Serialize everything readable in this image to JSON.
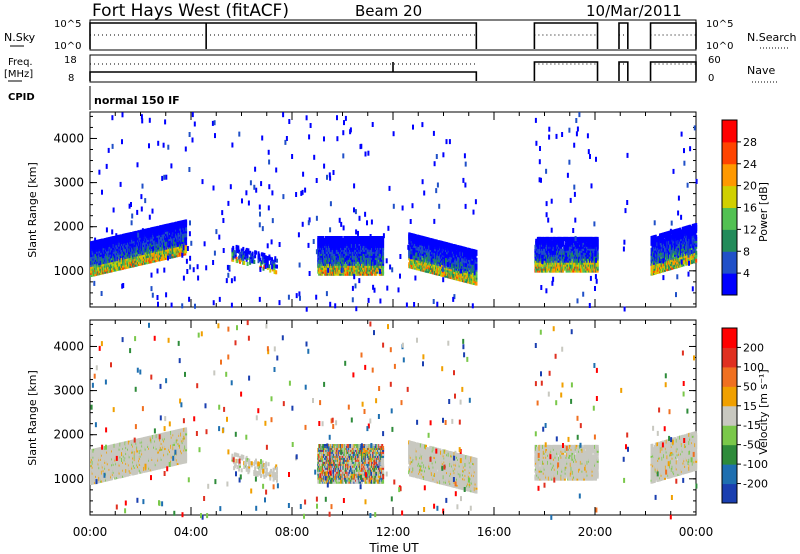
{
  "header": {
    "station": "Fort Hays West (fitACF)",
    "beam": "Beam 20",
    "date": "10/Mar/2011",
    "cpid_label": "CPID",
    "cpid_value": "normal 150 IF"
  },
  "noise_panel": {
    "left_label": "N.Sky",
    "right_label": "N.Search",
    "left_ticks": [
      "10^5",
      "10^0"
    ],
    "right_ticks": [
      "10^5",
      "10^0"
    ]
  },
  "freq_panel": {
    "left_label_1": "Freq.",
    "left_label_2": "[MHz]",
    "right_label": "Nave",
    "left_ticks": [
      "18",
      "8"
    ],
    "right_ticks": [
      "60",
      "0"
    ]
  },
  "chart_data": [
    {
      "type": "heatmap",
      "name": "power",
      "ylabel": "Slant Range [km]",
      "y_ticks": [
        1000,
        2000,
        3000,
        4000
      ],
      "ylim": [
        180,
        4600
      ],
      "colorbar_label": "Power [dB]",
      "colorbar_ticks": [
        "28",
        "24",
        "20",
        "16",
        "12",
        "8",
        "4"
      ],
      "colors": [
        "#0000ff",
        "#2050c8",
        "#228b5a",
        "#52c152",
        "#d0d000",
        "#ff9900",
        "#ff4400",
        "#ff0000"
      ]
    },
    {
      "type": "heatmap",
      "name": "velocity",
      "ylabel": "Slant Range [km]",
      "y_ticks": [
        1000,
        2000,
        3000,
        4000
      ],
      "ylim": [
        180,
        4600
      ],
      "colorbar_label": "Velocity [m s⁻¹]",
      "colorbar_ticks": [
        "200",
        "100",
        "50",
        "15",
        "-15",
        "-50",
        "-100",
        "-200"
      ],
      "colors": [
        "#1a3fb0",
        "#1e6fb0",
        "#2e8b3a",
        "#7ac84a",
        "#c8c8c0",
        "#f0a000",
        "#f07020",
        "#e03020",
        "#ff0000"
      ]
    }
  ],
  "x_axis": {
    "label": "Time UT",
    "ticks": [
      "00:00",
      "04:00",
      "08:00",
      "12:00",
      "16:00",
      "20:00",
      "00:00"
    ],
    "xlim_hours": [
      0,
      24
    ]
  },
  "operating_intervals_hours": [
    [
      0,
      15.3
    ],
    [
      17.6,
      20.1
    ],
    [
      20.95,
      21.3
    ],
    [
      22.2,
      24
    ]
  ],
  "scatter_regions": [
    {
      "t0": 0.0,
      "t1": 3.8,
      "r0": 950,
      "r1": 1700,
      "density": 0.9,
      "slope": 500
    },
    {
      "t0": 5.6,
      "t1": 7.4,
      "r0": 1300,
      "r1": 1650,
      "density": 0.25,
      "slope": -300
    },
    {
      "t0": 9.0,
      "t1": 11.6,
      "r0": 980,
      "r1": 1800,
      "density": 0.8,
      "slope": 0
    },
    {
      "t0": 12.6,
      "t1": 15.3,
      "r0": 1150,
      "r1": 1900,
      "density": 0.85,
      "slope": -400
    },
    {
      "t0": 17.6,
      "t1": 20.1,
      "r0": 1050,
      "r1": 1800,
      "density": 0.75,
      "slope": 0
    },
    {
      "t0": 22.2,
      "t1": 24.0,
      "r0": 980,
      "r1": 1800,
      "density": 0.8,
      "slope": 300
    }
  ]
}
